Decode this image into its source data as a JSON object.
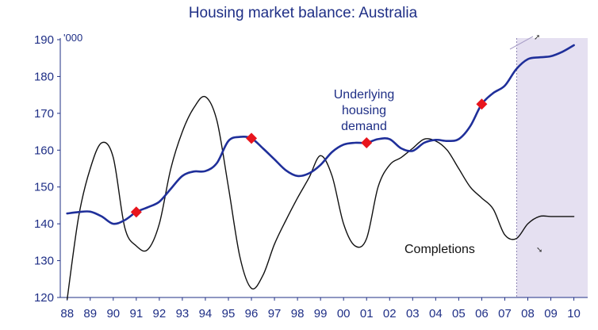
{
  "chart_data": {
    "type": "line",
    "title": "Housing market balance: Australia",
    "unit_label": "'000",
    "xlabel": "",
    "ylabel": "",
    "ylim": [
      120,
      190
    ],
    "yticks": [
      "120",
      "130",
      "140",
      "150",
      "160",
      "170",
      "180",
      "190"
    ],
    "categories": [
      "88",
      "89",
      "90",
      "91",
      "92",
      "93",
      "94",
      "95",
      "96",
      "97",
      "98",
      "99",
      "00",
      "01",
      "02",
      "03",
      "04",
      "05",
      "06",
      "07",
      "08",
      "09",
      "10"
    ],
    "x": [
      88,
      88.5,
      89,
      89.5,
      90,
      90.5,
      91,
      91.5,
      92,
      92.5,
      93,
      93.5,
      94,
      94.5,
      95,
      95.5,
      96,
      96.5,
      97,
      97.5,
      98,
      98.5,
      99,
      99.5,
      100,
      100.5,
      101,
      101.5,
      102,
      102.5,
      103,
      103.5,
      104,
      104.5,
      105,
      105.5,
      106,
      106.5,
      107,
      107.5,
      108,
      108.5,
      109,
      109.5,
      110
    ],
    "series": [
      {
        "name": "Underlying housing demand",
        "color": "#1f2f9a",
        "values": [
          142.8,
          143.2,
          143.3,
          142.0,
          140.0,
          141.0,
          143.2,
          144.5,
          146.0,
          149.5,
          153.0,
          154.2,
          154.3,
          156.5,
          162.5,
          163.6,
          163.2,
          160.5,
          157.5,
          154.5,
          153.0,
          153.7,
          156.0,
          159.5,
          161.5,
          162.0,
          162.0,
          163.0,
          163.0,
          160.5,
          159.8,
          162.0,
          162.8,
          162.5,
          163.0,
          166.5,
          172.5,
          175.5,
          177.5,
          182.0,
          184.7,
          185.2,
          185.5,
          186.7,
          188.5
        ]
      },
      {
        "name": "Completions",
        "color": "#111111",
        "values": [
          119.5,
          142.0,
          155.0,
          162.0,
          158.0,
          139.0,
          134.0,
          133.0,
          140.0,
          155.0,
          165.0,
          171.5,
          174.5,
          168.0,
          150.0,
          131.0,
          122.5,
          126.0,
          134.5,
          141.0,
          147.0,
          152.5,
          158.5,
          153.0,
          140.0,
          134.0,
          136.0,
          150.0,
          156.0,
          158.0,
          160.5,
          163.0,
          162.5,
          160.0,
          155.0,
          150.0,
          147.0,
          144.0,
          137.0,
          136.0,
          140.0,
          142.0,
          142.0,
          142.0,
          142.0
        ]
      }
    ],
    "markers": {
      "color": "#e8151d",
      "points": [
        [
          91,
          143.2
        ],
        [
          96,
          163.2
        ],
        [
          101,
          162.0
        ],
        [
          106,
          172.5
        ]
      ]
    },
    "shaded_region": {
      "from": 108,
      "to": 110,
      "color": "#dcd6ec"
    },
    "annotations": {
      "demand_label": [
        "Underlying",
        "housing",
        "demand"
      ],
      "completions_label": "Completions"
    },
    "grid": false,
    "legend": "none"
  }
}
